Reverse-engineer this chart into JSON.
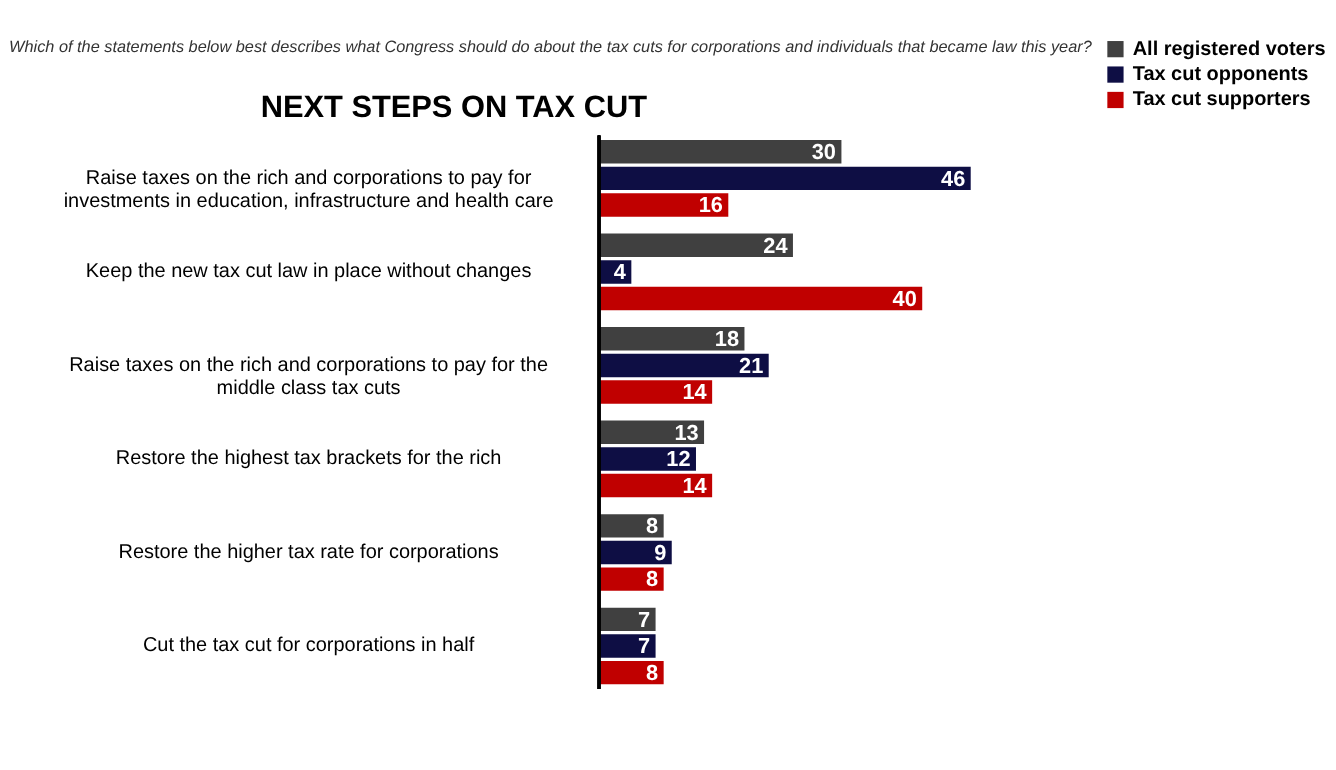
{
  "chart_data": {
    "type": "bar",
    "orientation": "horizontal",
    "title": "NEXT STEPS ON TAX CUT",
    "subtitle": "Which of the statements below best describes what Congress should do about the tax cuts for corporations and individuals that became law this year?",
    "categories": [
      "Raise taxes on the rich and corporations to pay for investments in education, infrastructure and health care",
      "Keep the new tax cut law in place without changes",
      "Raise taxes on the rich and corporations to pay for the middle class tax cuts",
      "Restore the highest tax brackets for the rich",
      "Restore the higher tax rate for corporations",
      "Cut the tax cut for corporations in half"
    ],
    "series": [
      {
        "name": "All registered voters",
        "color": "#404040",
        "values": [
          30,
          24,
          18,
          13,
          8,
          7
        ]
      },
      {
        "name": "Tax cut opponents",
        "color": "#0e0e44",
        "values": [
          46,
          4,
          21,
          12,
          9,
          7
        ]
      },
      {
        "name": "Tax cut supporters",
        "color": "#c00000",
        "values": [
          16,
          40,
          14,
          14,
          8,
          8
        ]
      }
    ],
    "data_labels": true,
    "legend": "top right"
  }
}
